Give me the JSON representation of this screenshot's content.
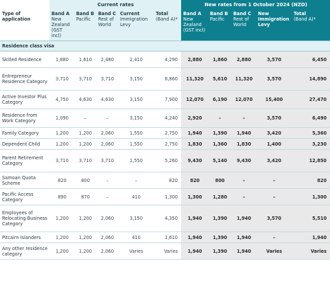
{
  "group_headers": {
    "current": "Current rates",
    "new": "New rates from 1 October 2024 (NZD)"
  },
  "columns": {
    "type": "Type of application",
    "cur_a_title": "Band A",
    "cur_a_sub": "New Zealand (GST incl)",
    "cur_b_title": "Band B",
    "cur_b_sub": "Pacific",
    "cur_c_title": "Band C",
    "cur_c_sub": "Rest of World",
    "cur_levy_title": "Current",
    "cur_levy_sub": "Immigration Levy",
    "cur_total_title": "Total",
    "cur_total_sub": "(Band A)*",
    "new_a_title": "Band A",
    "new_a_sub": "New Zealand (GST incl)",
    "new_b_title": "Band B",
    "new_b_sub": "Pacific",
    "new_c_title": "Band C",
    "new_c_sub": "Rest of World",
    "new_levy_title": "New",
    "new_levy_sub": "Immigration Levy",
    "new_total_title": "Total",
    "new_total_sub": "(Band A)*"
  },
  "section": "Residence class visa",
  "rows": [
    {
      "label": "Skilled Residence",
      "cur": [
        "1,880",
        "1,610",
        "2,480",
        "2,410",
        "4,290"
      ],
      "new": [
        "2,880",
        "1,860",
        "2,880",
        "3,570",
        "6,450"
      ]
    },
    {
      "label": "Entrepreneur Residence Category",
      "cur": [
        "3,710",
        "3,710",
        "3,710",
        "3,150",
        "6,860"
      ],
      "new": [
        "11,320",
        "5,610",
        "11,320",
        "3,570",
        "14,890"
      ]
    },
    {
      "label": "Active Investor Plus Category",
      "cur": [
        "4,750",
        "4,630",
        "4,630",
        "3,150",
        "7,900"
      ],
      "new": [
        "12,070",
        "6,190",
        "12,070",
        "15,400",
        "27,470"
      ]
    },
    {
      "label": "Residence from Work Category",
      "cur": [
        "1,090",
        "–",
        "–",
        "3,150",
        "4,240"
      ],
      "new": [
        "2,920",
        "–",
        "–",
        "3,570",
        "6,490"
      ]
    },
    {
      "label": "Family Category",
      "cur": [
        "1,200",
        "1,200",
        "2,060",
        "1,550",
        "2,750"
      ],
      "new": [
        "1,940",
        "1,390",
        "1,940",
        "3,420",
        "5,360"
      ]
    },
    {
      "label": "Dependent Child",
      "cur": [
        "1,200",
        "1,200",
        "2,060",
        "1,550",
        "2,750"
      ],
      "new": [
        "1,830",
        "1,360",
        "1,830",
        "1,400",
        "3,230"
      ]
    },
    {
      "label": "Parent Retirement Category",
      "cur": [
        "3,710",
        "3,710",
        "3,710",
        "1,550",
        "5,260"
      ],
      "new": [
        "9,430",
        "5,140",
        "9,430",
        "3,420",
        "12,850"
      ]
    },
    {
      "label": "Samoan Quota Scheme",
      "cur": [
        "820",
        "800",
        "–",
        "–",
        "820"
      ],
      "new": [
        "820",
        "800",
        "–",
        "–",
        "820"
      ]
    },
    {
      "label": "Pacific Access Category",
      "cur": [
        "890",
        "870",
        "–",
        "410",
        "1,300"
      ],
      "new": [
        "1,300",
        "1,280",
        "–",
        "–",
        "1,300"
      ]
    },
    {
      "label": "Employees of Relocating Business Category",
      "cur": [
        "1,200",
        "1,200",
        "2,060",
        "3,150",
        "4,350"
      ],
      "new": [
        "1,940",
        "1,390",
        "1,940",
        "3,570",
        "5,510"
      ]
    },
    {
      "label": "Pitcairn Islanders",
      "cur": [
        "1,200",
        "1,200",
        "2,060",
        "410",
        "1,610"
      ],
      "new": [
        "1,940",
        "1,390",
        "1,940",
        "–",
        "1,940"
      ]
    },
    {
      "label": "Any other residence category",
      "cur": [
        "1,200",
        "1,200",
        "2,060",
        "Varies",
        "Varies"
      ],
      "new": [
        "1,940",
        "1,390",
        "1,940",
        "Varies",
        "Varies"
      ]
    }
  ]
}
